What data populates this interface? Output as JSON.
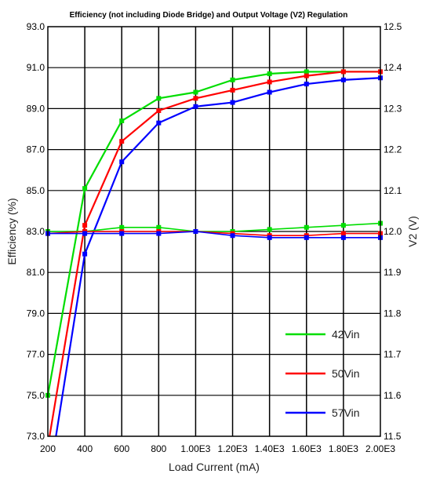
{
  "chart_data": {
    "type": "line",
    "title": "Efficiency (not including Diode Bridge) and Output Voltage (V2) Regulation",
    "xlabel": "Load Current (mA)",
    "ylabel_left": "Efficiency (%)",
    "ylabel_right": "V2 (V)",
    "x_tick_labels": [
      "200",
      "400",
      "600",
      "800",
      "1.00E3",
      "1.20E3",
      "1.40E3",
      "1.60E3",
      "1.80E3",
      "2.00E3"
    ],
    "y_left_tick_labels": [
      "73.0",
      "75.0",
      "77.0",
      "79.0",
      "81.0",
      "83.0",
      "85.0",
      "87.0",
      "89.0",
      "91.0",
      "93.0"
    ],
    "y_right_tick_labels": [
      "11.5",
      "11.6",
      "11.7",
      "11.8",
      "11.9",
      "12.0",
      "12.1",
      "12.2",
      "12.3",
      "12.4",
      "12.5"
    ],
    "xlim": [
      200,
      2000
    ],
    "ylim_left": [
      73,
      93
    ],
    "ylim_right": [
      11.5,
      12.5
    ],
    "grid": {
      "vertical": true,
      "horizontal": true
    },
    "legend_position": "bottom-right",
    "x": [
      200,
      400,
      600,
      800,
      1000,
      1200,
      1400,
      1600,
      1800,
      2000
    ],
    "series": [
      {
        "name": "42Vin",
        "color": "#00dd00",
        "axis": "left",
        "kind": "efficiency",
        "values": [
          75.0,
          85.1,
          88.4,
          89.5,
          89.8,
          90.4,
          90.7,
          90.8,
          90.8,
          90.8
        ]
      },
      {
        "name": "50Vin",
        "color": "#ff0000",
        "axis": "left",
        "kind": "efficiency",
        "values": [
          72.5,
          83.3,
          87.4,
          88.9,
          89.5,
          89.9,
          90.3,
          90.6,
          90.8,
          90.8
        ]
      },
      {
        "name": "57Vin",
        "color": "#0000ff",
        "axis": "left",
        "kind": "efficiency",
        "values": [
          70.5,
          81.9,
          86.4,
          88.3,
          89.1,
          89.3,
          89.8,
          90.2,
          90.4,
          90.5
        ]
      },
      {
        "name": "42Vin",
        "color": "#00dd00",
        "axis": "right",
        "kind": "voltage",
        "values": [
          12.0,
          12.0,
          12.01,
          12.01,
          12.0,
          12.0,
          12.005,
          12.01,
          12.015,
          12.02
        ]
      },
      {
        "name": "50Vin",
        "color": "#ff0000",
        "axis": "right",
        "kind": "voltage",
        "values": [
          11.995,
          12.0,
          12.0,
          12.0,
          12.0,
          11.995,
          11.99,
          11.99,
          11.995,
          11.995
        ]
      },
      {
        "name": "57Vin",
        "color": "#0000ff",
        "axis": "right",
        "kind": "voltage",
        "values": [
          11.995,
          11.995,
          11.995,
          11.995,
          12.0,
          11.99,
          11.985,
          11.985,
          11.985,
          11.985
        ]
      }
    ],
    "legend": [
      {
        "name": "42Vin",
        "color": "#00dd00"
      },
      {
        "name": "50Vin",
        "color": "#ff0000"
      },
      {
        "name": "57Vin",
        "color": "#0000ff"
      }
    ]
  }
}
